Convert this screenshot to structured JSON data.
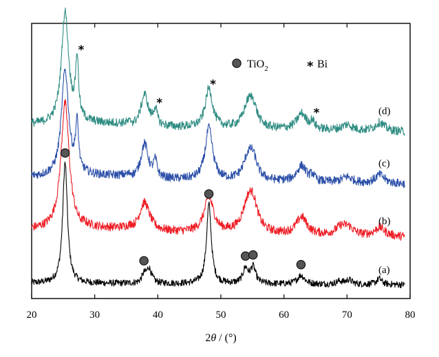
{
  "chart_data": {
    "type": "line",
    "xlabel_prefix": "2",
    "xlabel_theta": "θ",
    "xlabel_suffix": " / (°)",
    "ylabel": "",
    "xlim": [
      20,
      80
    ],
    "x_ticks": [
      "20",
      "30",
      "40",
      "50",
      "60",
      "70",
      "80"
    ],
    "y_ticks_shown": false,
    "grid": false,
    "legend": {
      "placement": "top-right",
      "items": [
        {
          "marker": "filled-circle",
          "label_main": "TiO",
          "label_sub": "2"
        },
        {
          "marker": "asterisk",
          "label_main": "Bi",
          "label_sub": ""
        }
      ]
    },
    "series": [
      {
        "name": "(a)",
        "color": "#000000",
        "peaks": [
          {
            "x": 25.3,
            "h": 0.82,
            "w": 0.45
          },
          {
            "x": 37.8,
            "h": 0.05,
            "w": 0.4
          },
          {
            "x": 38.6,
            "h": 0.1,
            "w": 0.5
          },
          {
            "x": 48.1,
            "h": 0.54,
            "w": 0.45
          },
          {
            "x": 53.9,
            "h": 0.1,
            "w": 0.5
          },
          {
            "x": 55.1,
            "h": 0.11,
            "w": 0.5
          },
          {
            "x": 62.7,
            "h": 0.06,
            "w": 0.7
          },
          {
            "x": 68.8,
            "h": 0.02,
            "w": 0.6
          },
          {
            "x": 70.3,
            "h": 0.03,
            "w": 0.6
          },
          {
            "x": 75.1,
            "h": 0.04,
            "w": 0.5
          }
        ]
      },
      {
        "name": "(b)",
        "color": "#ee1c24",
        "peaks": [
          {
            "x": 25.3,
            "h": 0.88,
            "w": 0.8
          },
          {
            "x": 37.9,
            "h": 0.2,
            "w": 1.0
          },
          {
            "x": 48.1,
            "h": 0.24,
            "w": 0.9
          },
          {
            "x": 54.3,
            "h": 0.18,
            "w": 1.1
          },
          {
            "x": 55.1,
            "h": 0.16,
            "w": 0.9
          },
          {
            "x": 62.8,
            "h": 0.12,
            "w": 1.0
          },
          {
            "x": 69.0,
            "h": 0.05,
            "w": 1.0
          },
          {
            "x": 70.2,
            "h": 0.05,
            "w": 1.0
          },
          {
            "x": 75.2,
            "h": 0.06,
            "w": 1.0
          }
        ]
      },
      {
        "name": "(c)",
        "color": "#2b4fa8",
        "peaks": [
          {
            "x": 25.3,
            "h": 0.74,
            "w": 0.7
          },
          {
            "x": 27.2,
            "h": 0.34,
            "w": 0.3
          },
          {
            "x": 37.9,
            "h": 0.24,
            "w": 0.7
          },
          {
            "x": 39.6,
            "h": 0.11,
            "w": 0.35
          },
          {
            "x": 48.1,
            "h": 0.36,
            "w": 0.7
          },
          {
            "x": 54.3,
            "h": 0.14,
            "w": 0.9
          },
          {
            "x": 55.1,
            "h": 0.13,
            "w": 0.8
          },
          {
            "x": 62.8,
            "h": 0.11,
            "w": 0.9
          },
          {
            "x": 64.5,
            "h": 0.04,
            "w": 0.4
          },
          {
            "x": 70.0,
            "h": 0.04,
            "w": 1.0
          },
          {
            "x": 75.2,
            "h": 0.06,
            "w": 0.9
          }
        ]
      },
      {
        "name": "(d)",
        "color": "#2e8c82",
        "peaks": [
          {
            "x": 25.3,
            "h": 0.78,
            "w": 0.7
          },
          {
            "x": 27.2,
            "h": 0.42,
            "w": 0.3
          },
          {
            "x": 37.9,
            "h": 0.22,
            "w": 0.7
          },
          {
            "x": 39.6,
            "h": 0.11,
            "w": 0.35
          },
          {
            "x": 48.1,
            "h": 0.27,
            "w": 0.7
          },
          {
            "x": 54.3,
            "h": 0.14,
            "w": 0.9
          },
          {
            "x": 55.1,
            "h": 0.13,
            "w": 0.8
          },
          {
            "x": 62.8,
            "h": 0.11,
            "w": 0.9
          },
          {
            "x": 64.5,
            "h": 0.05,
            "w": 0.4
          },
          {
            "x": 70.0,
            "h": 0.04,
            "w": 1.0
          },
          {
            "x": 75.2,
            "h": 0.06,
            "w": 0.9
          }
        ]
      }
    ],
    "annotations": {
      "tio2_circle_x": [
        25.3,
        37.8,
        48.1,
        53.9,
        55.1,
        62.7
      ],
      "bi_star_x": [
        27.2,
        39.6,
        48.1,
        64.5
      ],
      "star_glyph": "*",
      "circle_color": "#555555"
    }
  }
}
